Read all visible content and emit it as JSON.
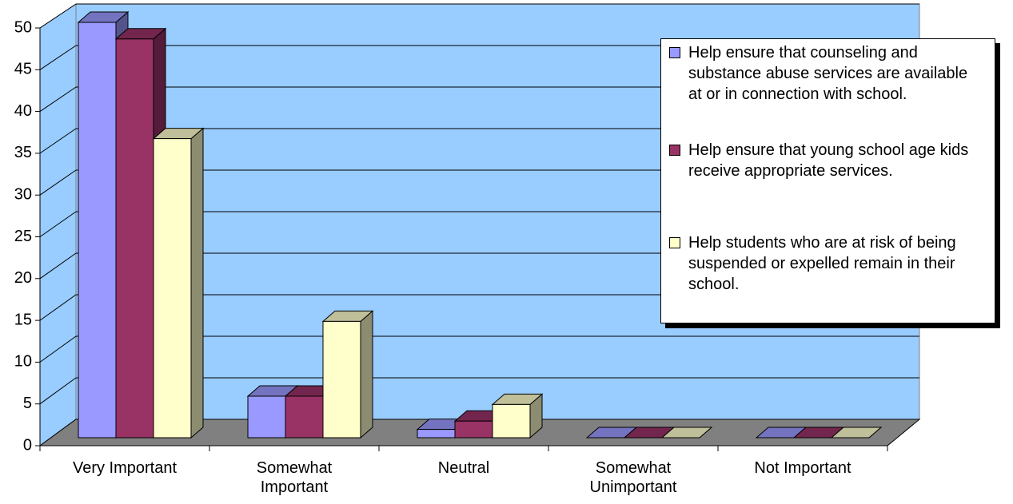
{
  "chart_data": {
    "type": "bar3d",
    "categories": [
      "Very Important",
      "Somewhat Important",
      "Neutral",
      "Somewhat Unimportant",
      "Not Important"
    ],
    "series": [
      {
        "name": "Help ensure that counseling and substance abuse services are available at or in connection with school.",
        "color": "#9999ff",
        "values": [
          50,
          5,
          1,
          0,
          0
        ]
      },
      {
        "name": "Help ensure that young school age kids receive appropriate services.",
        "color": "#993366",
        "values": [
          48,
          5,
          2,
          0,
          0
        ]
      },
      {
        "name": "Help students who are at risk of being suspended or expelled remain in their school.",
        "color": "#ffffcc",
        "values": [
          36,
          14,
          4,
          0,
          0
        ]
      }
    ],
    "ylim": [
      0,
      50
    ],
    "yticks": [
      0,
      5,
      10,
      15,
      20,
      25,
      30,
      35,
      40,
      45,
      50
    ],
    "grid": true,
    "legend": "right"
  }
}
